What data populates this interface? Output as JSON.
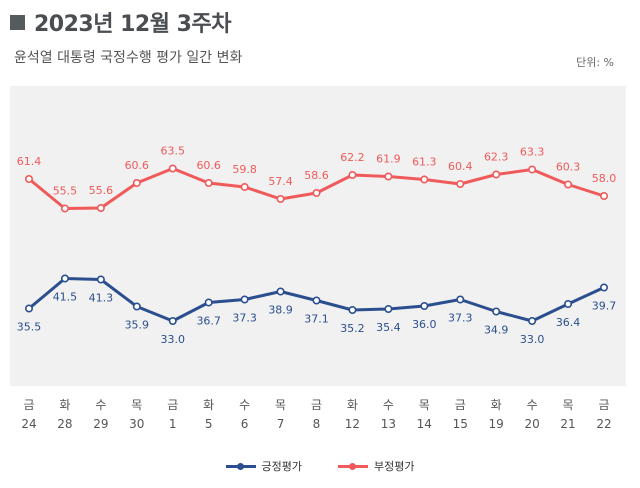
{
  "header": {
    "title": "2023년 12월 3주차"
  },
  "subtitle": "윤석열 대통령 국정수행 평가 일간 변화",
  "unit_label": "단위: %",
  "chart_data": {
    "type": "line",
    "title": "2023년 12월 3주차",
    "subtitle": "윤석열 대통령 국정수행 평가 일간 변화",
    "unit": "%",
    "ylim": [
      20,
      80
    ],
    "grid": false,
    "legend_position": "bottom-center",
    "categories": [
      {
        "day": "금",
        "date": "24"
      },
      {
        "day": "화",
        "date": "28"
      },
      {
        "day": "수",
        "date": "29"
      },
      {
        "day": "목",
        "date": "30"
      },
      {
        "day": "금",
        "date": "1"
      },
      {
        "day": "화",
        "date": "5"
      },
      {
        "day": "수",
        "date": "6"
      },
      {
        "day": "목",
        "date": "7"
      },
      {
        "day": "금",
        "date": "8"
      },
      {
        "day": "화",
        "date": "12"
      },
      {
        "day": "수",
        "date": "13"
      },
      {
        "day": "목",
        "date": "14"
      },
      {
        "day": "금",
        "date": "15"
      },
      {
        "day": "화",
        "date": "19"
      },
      {
        "day": "수",
        "date": "20"
      },
      {
        "day": "목",
        "date": "21"
      },
      {
        "day": "금",
        "date": "22"
      }
    ],
    "series": [
      {
        "name": "부정평가",
        "color": "#f05a5a",
        "label_position": "above",
        "values": [
          61.4,
          55.5,
          55.6,
          60.6,
          63.5,
          60.6,
          59.8,
          57.4,
          58.6,
          62.2,
          61.9,
          61.3,
          60.4,
          62.3,
          63.3,
          60.3,
          58.0
        ]
      },
      {
        "name": "긍정평가",
        "color": "#2b4f8e",
        "label_position": "below",
        "values": [
          35.5,
          41.5,
          41.3,
          35.9,
          33.0,
          36.7,
          37.3,
          38.9,
          37.1,
          35.2,
          35.4,
          36.0,
          37.3,
          34.9,
          33.0,
          36.4,
          39.7
        ]
      }
    ],
    "legend": [
      {
        "name": "긍정평가",
        "color": "#2b4f8e"
      },
      {
        "name": "부정평가",
        "color": "#f05a5a"
      }
    ]
  }
}
